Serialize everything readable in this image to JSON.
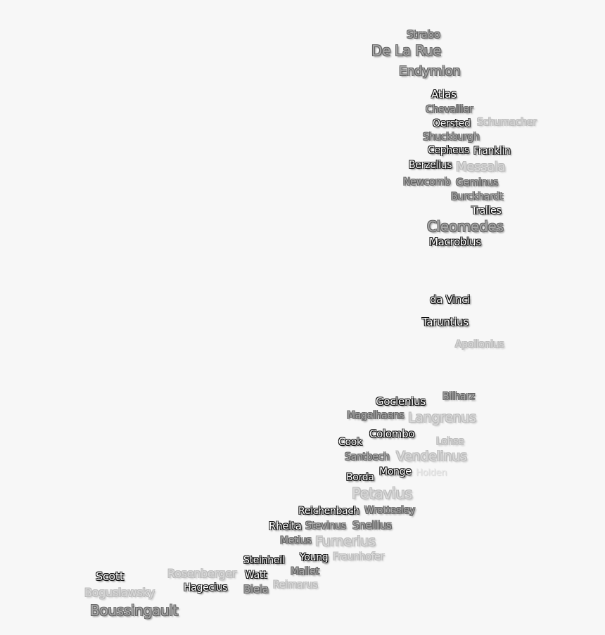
{
  "map": {
    "subject": "lunar crater labels",
    "colors": {
      "background": "#f7f7f7",
      "dark_label_fill": "#ffffff",
      "dark_label_outline": "#111111",
      "mid_label": "#a8a8a8",
      "light_label": "#d8d8d8"
    },
    "labels": [
      {
        "name": "Strabo",
        "tier": "mid"
      },
      {
        "name": "De La Rue",
        "tier": "mid"
      },
      {
        "name": "Endymion",
        "tier": "mid"
      },
      {
        "name": "Atlas",
        "tier": "dark"
      },
      {
        "name": "Chevallier",
        "tier": "mid"
      },
      {
        "name": "Oersted",
        "tier": "dark"
      },
      {
        "name": "Shuckburgh",
        "tier": "mid"
      },
      {
        "name": "Cepheus",
        "tier": "dark"
      },
      {
        "name": "Schumacher",
        "tier": "light"
      },
      {
        "name": "Franklin",
        "tier": "dark"
      },
      {
        "name": "Messala",
        "tier": "light"
      },
      {
        "name": "Berzelius",
        "tier": "dark"
      },
      {
        "name": "Geminus",
        "tier": "mid"
      },
      {
        "name": "Newcomb",
        "tier": "mid"
      },
      {
        "name": "Burckhardt",
        "tier": "mid"
      },
      {
        "name": "Tralles",
        "tier": "dark"
      },
      {
        "name": "Cleomedes",
        "tier": "mid"
      },
      {
        "name": "Macrobius",
        "tier": "dark"
      },
      {
        "name": "da Vinci",
        "tier": "dark"
      },
      {
        "name": "Taruntius",
        "tier": "dark"
      },
      {
        "name": "Apollonius",
        "tier": "light"
      },
      {
        "name": "Bilharz",
        "tier": "mid"
      },
      {
        "name": "Langrenus",
        "tier": "light"
      },
      {
        "name": "Goclenius",
        "tier": "dark"
      },
      {
        "name": "Magelhaens",
        "tier": "mid"
      },
      {
        "name": "Colombo",
        "tier": "dark"
      },
      {
        "name": "Lohse",
        "tier": "light"
      },
      {
        "name": "Vendelinus",
        "tier": "light"
      },
      {
        "name": "Holden",
        "tier": "faint"
      },
      {
        "name": "Santbech",
        "tier": "mid"
      },
      {
        "name": "Monge",
        "tier": "dark"
      },
      {
        "name": "Cook",
        "tier": "dark"
      },
      {
        "name": "Petavius",
        "tier": "light"
      },
      {
        "name": "Wrottesley",
        "tier": "mid"
      },
      {
        "name": "Borda",
        "tier": "dark"
      },
      {
        "name": "Snellius",
        "tier": "mid"
      },
      {
        "name": "Reichenbach",
        "tier": "dark"
      },
      {
        "name": "Stevinus",
        "tier": "mid"
      },
      {
        "name": "Furnerius",
        "tier": "light"
      },
      {
        "name": "Metius",
        "tier": "mid"
      },
      {
        "name": "Rheita",
        "tier": "dark"
      },
      {
        "name": "Fraunhofer",
        "tier": "light"
      },
      {
        "name": "Young",
        "tier": "dark"
      },
      {
        "name": "Mallet",
        "tier": "mid"
      },
      {
        "name": "Reimarus",
        "tier": "light"
      },
      {
        "name": "Steinheil",
        "tier": "dark"
      },
      {
        "name": "Watt",
        "tier": "dark"
      },
      {
        "name": "Rosenberger",
        "tier": "light"
      },
      {
        "name": "Biela",
        "tier": "mid"
      },
      {
        "name": "Hagecius",
        "tier": "dark"
      },
      {
        "name": "Boguslawsky",
        "tier": "light"
      },
      {
        "name": "Boussingault",
        "tier": "mid"
      },
      {
        "name": "Scott",
        "tier": "dark"
      }
    ]
  }
}
